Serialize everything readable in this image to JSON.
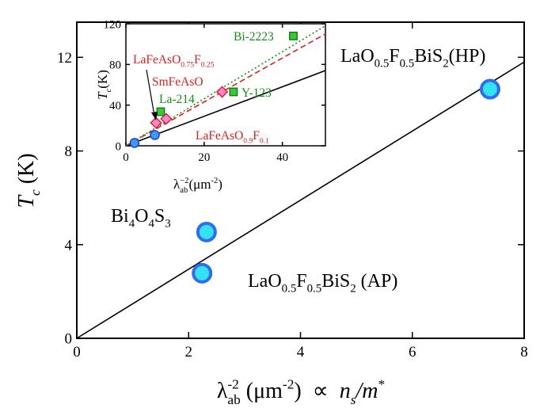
{
  "chart_data": [
    {
      "type": "scatter",
      "xlim": [
        0,
        8
      ],
      "ylim": [
        0,
        13.5
      ],
      "xticks": [
        0,
        2,
        4,
        6,
        8
      ],
      "yticks": [
        0,
        4,
        8,
        12
      ],
      "x_label": [
        {
          "text": "λ"
        },
        {
          "text": "-2",
          "pos": "sup"
        },
        {
          "text": "ab",
          "pos": "sub"
        },
        {
          "text": " (μm"
        },
        {
          "text": "-2",
          "pos": "sup"
        },
        {
          "text": ")  ∝  "
        },
        {
          "text": "n",
          "italic": true
        },
        {
          "text": "s",
          "pos": "sub",
          "italic": true
        },
        {
          "text": "/m",
          "italic": true
        },
        {
          "text": "*",
          "pos": "sup"
        }
      ],
      "y_label": [
        {
          "text": "T",
          "italic": true
        },
        {
          "text": "c",
          "pos": "sub",
          "italic": true
        },
        {
          "text": " (K)"
        }
      ],
      "series": [
        {
          "marker": "circle",
          "color": "#2f6cf0",
          "fill": "#33e3f2",
          "x": [
            7.39,
            2.32,
            2.24
          ],
          "values": [
            10.64,
            4.54,
            2.78
          ]
        }
      ],
      "lines": [
        {
          "color": "#000000",
          "style": "solid",
          "x": [
            0,
            8
          ],
          "values": [
            0,
            11.8
          ]
        }
      ],
      "annotations": [
        {
          "color": "#000000",
          "parts": [
            {
              "text": "LaO"
            },
            {
              "text": "0.5",
              "pos": "sub"
            },
            {
              "text": "F"
            },
            {
              "text": "0.5",
              "pos": "sub"
            },
            {
              "text": "BiS"
            },
            {
              "text": "2",
              "pos": "sub"
            },
            {
              "text": "(HP)"
            }
          ]
        },
        {
          "color": "#000000",
          "parts": [
            {
              "text": "Bi"
            },
            {
              "text": "4",
              "pos": "sub"
            },
            {
              "text": "O"
            },
            {
              "text": "4",
              "pos": "sub"
            },
            {
              "text": "S"
            },
            {
              "text": "3",
              "pos": "sub"
            }
          ]
        },
        {
          "color": "#000000",
          "parts": [
            {
              "text": "LaO"
            },
            {
              "text": "0.5",
              "pos": "sub"
            },
            {
              "text": "F"
            },
            {
              "text": "0.5",
              "pos": "sub"
            },
            {
              "text": "BiS"
            },
            {
              "text": "2",
              "pos": "sub"
            },
            {
              "text": " (AP)"
            }
          ]
        }
      ]
    },
    {
      "type": "scatter",
      "xlim": [
        0,
        51
      ],
      "ylim": [
        0,
        120
      ],
      "xticks": [
        0,
        20,
        40
      ],
      "yticks": [
        0,
        40,
        80,
        120
      ],
      "x_label": [
        {
          "text": "λ"
        },
        {
          "text": "−2",
          "pos": "sup"
        },
        {
          "text": "ab",
          "pos": "sub"
        },
        {
          "text": "(μm"
        },
        {
          "text": "-2",
          "pos": "sup"
        },
        {
          "text": ")"
        }
      ],
      "y_label": [
        {
          "text": "T",
          "italic": true
        },
        {
          "text": "c",
          "pos": "sub",
          "italic": true
        },
        {
          "text": "(K)"
        }
      ],
      "series": [
        {
          "marker": "circle",
          "color": "#1a3fd0",
          "fill": "#3a9cf5",
          "x": [
            2.2,
            7.4
          ],
          "values": [
            2.8,
            10.6
          ]
        },
        {
          "marker": "diamond",
          "color": "#e0203a",
          "fill": "#ff88c8",
          "x": [
            7.7,
            10.3,
            24.6
          ],
          "values": [
            22.6,
            26.5,
            53
          ]
        },
        {
          "marker": "square",
          "color": "#1a7a1a",
          "fill": "#33cc33",
          "x": [
            8.9,
            27.5,
            42.8
          ],
          "values": [
            33.5,
            53,
            108
          ]
        }
      ],
      "lines": [
        {
          "color": "#000000",
          "style": "solid",
          "x": [
            0,
            51
          ],
          "values": [
            0,
            74
          ]
        },
        {
          "color": "#e02020",
          "style": "dashed",
          "x": [
            0,
            51
          ],
          "values": [
            0,
            110
          ]
        },
        {
          "color": "#1a8a1a",
          "style": "dotted",
          "x": [
            0,
            51
          ],
          "values": [
            0,
            118
          ]
        }
      ],
      "annotations": [
        {
          "color": "#1a8a1a",
          "parts": [
            {
              "text": "Bi-2223"
            }
          ]
        },
        {
          "color": "#e02020",
          "parts": [
            {
              "text": "LaFeAsO"
            },
            {
              "text": "0.75",
              "pos": "sub"
            },
            {
              "text": "F"
            },
            {
              "text": "0.25",
              "pos": "sub"
            }
          ]
        },
        {
          "color": "#e02020",
          "parts": [
            {
              "text": "SmFeAsO"
            }
          ]
        },
        {
          "color": "#1a8a1a",
          "parts": [
            {
              "text": "La-214"
            }
          ]
        },
        {
          "color": "#1a8a1a",
          "parts": [
            {
              "text": "Y-123"
            }
          ]
        },
        {
          "color": "#e02020",
          "parts": [
            {
              "text": "LaFeAsO"
            },
            {
              "text": "0.9",
              "pos": "sub"
            },
            {
              "text": "F"
            },
            {
              "text": "0.1",
              "pos": "sub"
            }
          ]
        }
      ]
    }
  ]
}
